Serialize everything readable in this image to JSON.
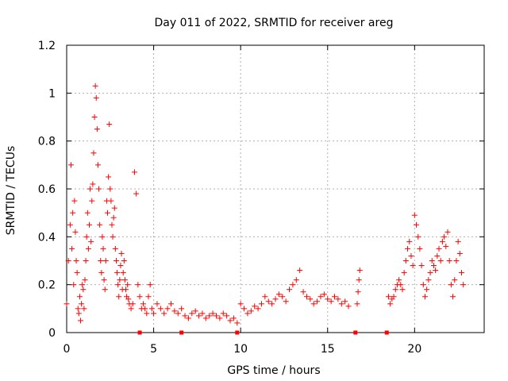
{
  "chart_data": {
    "type": "scatter",
    "title": "Day 011 of 2022, SRMTID for receiver areg",
    "xlabel": "GPS time / hours",
    "ylabel": "SRMTID / TECUs",
    "xlim": [
      0,
      24
    ],
    "ylim": [
      0,
      1.2
    ],
    "x_ticks": [
      0,
      5,
      10,
      15,
      20
    ],
    "x_tick_labels": [
      "0",
      "5",
      "10",
      "15",
      "20"
    ],
    "y_ticks": [
      0,
      0.2,
      0.4,
      0.6,
      0.8,
      1.0,
      1.2
    ],
    "y_tick_labels": [
      "0",
      "0.2",
      "0.4",
      "0.6",
      "0.8",
      "1",
      "1.2"
    ],
    "grid": true,
    "marker": "plus",
    "color": "#ff0000",
    "series": [
      {
        "name": "SRMTID",
        "x": [
          0.0,
          0.1,
          0.2,
          0.25,
          0.3,
          0.35,
          0.4,
          0.45,
          0.5,
          0.55,
          0.6,
          0.65,
          0.7,
          0.75,
          0.8,
          0.85,
          0.9,
          0.95,
          1.0,
          1.05,
          1.1,
          1.15,
          1.2,
          1.25,
          1.3,
          1.35,
          1.4,
          1.45,
          1.5,
          1.55,
          1.6,
          1.65,
          1.7,
          1.75,
          1.8,
          1.85,
          1.9,
          1.95,
          2.0,
          2.05,
          2.1,
          2.15,
          2.2,
          2.25,
          2.3,
          2.35,
          2.4,
          2.45,
          2.5,
          2.55,
          2.6,
          2.65,
          2.7,
          2.75,
          2.8,
          2.85,
          2.9,
          2.95,
          3.0,
          3.05,
          3.1,
          3.15,
          3.2,
          3.25,
          3.3,
          3.35,
          3.4,
          3.45,
          3.5,
          3.55,
          3.6,
          3.7,
          3.8,
          3.9,
          4.0,
          4.1,
          4.2,
          4.3,
          4.4,
          4.5,
          4.6,
          4.7,
          4.8,
          4.9,
          5.0,
          5.2,
          5.4,
          5.6,
          5.8,
          6.0,
          6.2,
          6.4,
          6.6,
          6.8,
          7.0,
          7.2,
          7.4,
          7.6,
          7.8,
          8.0,
          8.2,
          8.4,
          8.6,
          8.8,
          9.0,
          9.2,
          9.4,
          9.6,
          9.8,
          10.0,
          10.2,
          10.4,
          10.6,
          10.8,
          11.0,
          11.2,
          11.4,
          11.6,
          11.8,
          12.0,
          12.2,
          12.4,
          12.6,
          12.8,
          13.0,
          13.2,
          13.4,
          13.6,
          13.8,
          14.0,
          14.2,
          14.4,
          14.6,
          14.8,
          15.0,
          15.2,
          15.4,
          15.6,
          15.8,
          16.0,
          16.2,
          16.7,
          16.75,
          16.8,
          16.85,
          18.5,
          18.6,
          18.7,
          18.8,
          18.9,
          19.0,
          19.1,
          19.2,
          19.3,
          19.4,
          19.5,
          19.6,
          19.7,
          19.8,
          19.9,
          20.0,
          20.1,
          20.2,
          20.3,
          20.4,
          20.5,
          20.6,
          20.7,
          20.8,
          20.9,
          21.0,
          21.1,
          21.2,
          21.3,
          21.4,
          21.5,
          21.6,
          21.7,
          21.8,
          21.9,
          22.0,
          22.1,
          22.2,
          22.3,
          22.4,
          22.5,
          22.6,
          22.7,
          22.8
        ],
        "y": [
          0.12,
          0.3,
          0.45,
          0.7,
          0.35,
          0.5,
          0.2,
          0.55,
          0.42,
          0.3,
          0.25,
          0.1,
          0.08,
          0.15,
          0.05,
          0.12,
          0.2,
          0.18,
          0.1,
          0.22,
          0.3,
          0.4,
          0.5,
          0.35,
          0.45,
          0.6,
          0.38,
          0.55,
          0.62,
          0.75,
          0.9,
          1.03,
          0.98,
          0.85,
          0.7,
          0.6,
          0.45,
          0.3,
          0.25,
          0.4,
          0.35,
          0.22,
          0.18,
          0.3,
          0.55,
          0.5,
          0.65,
          0.87,
          0.6,
          0.55,
          0.45,
          0.4,
          0.48,
          0.52,
          0.35,
          0.3,
          0.25,
          0.2,
          0.15,
          0.22,
          0.28,
          0.33,
          0.18,
          0.25,
          0.3,
          0.22,
          0.18,
          0.15,
          0.2,
          0.14,
          0.12,
          0.1,
          0.12,
          0.67,
          0.58,
          0.2,
          0.15,
          0.1,
          0.12,
          0.1,
          0.08,
          0.15,
          0.2,
          0.1,
          0.08,
          0.12,
          0.1,
          0.08,
          0.1,
          0.12,
          0.09,
          0.08,
          0.1,
          0.07,
          0.06,
          0.08,
          0.09,
          0.07,
          0.08,
          0.06,
          0.07,
          0.08,
          0.07,
          0.06,
          0.08,
          0.07,
          0.05,
          0.06,
          0.04,
          0.12,
          0.1,
          0.08,
          0.09,
          0.11,
          0.1,
          0.12,
          0.15,
          0.13,
          0.12,
          0.14,
          0.16,
          0.15,
          0.13,
          0.18,
          0.2,
          0.22,
          0.26,
          0.17,
          0.15,
          0.14,
          0.12,
          0.13,
          0.15,
          0.16,
          0.14,
          0.13,
          0.15,
          0.14,
          0.12,
          0.13,
          0.11,
          0.12,
          0.17,
          0.22,
          0.26,
          0.15,
          0.12,
          0.14,
          0.15,
          0.18,
          0.2,
          0.22,
          0.2,
          0.18,
          0.25,
          0.3,
          0.35,
          0.38,
          0.32,
          0.28,
          0.49,
          0.45,
          0.4,
          0.35,
          0.28,
          0.2,
          0.15,
          0.18,
          0.22,
          0.25,
          0.3,
          0.28,
          0.26,
          0.32,
          0.35,
          0.3,
          0.38,
          0.4,
          0.36,
          0.42,
          0.3,
          0.2,
          0.15,
          0.22,
          0.3,
          0.38,
          0.33,
          0.25,
          0.2
        ]
      }
    ],
    "gap_markers_x": [
      4.2,
      6.6,
      9.8,
      16.6,
      18.4
    ]
  }
}
